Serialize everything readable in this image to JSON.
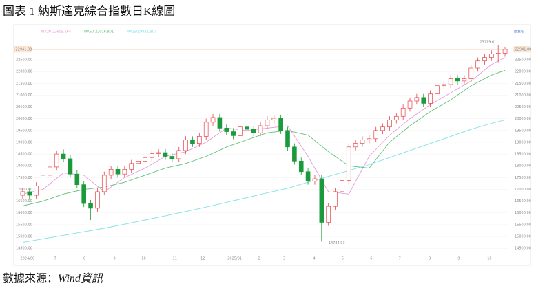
{
  "chart_data": {
    "type": "candlestick",
    "title": "圖表 1 納斯達克綜合指數日K線圖",
    "source_prefix": "數據來源：",
    "source_name": "Wind資訊",
    "adjust_label": "前复权",
    "up_color": "#e8424a",
    "down_color": "#1a9a3a",
    "grid": true,
    "xlim": [
      -0.5,
      71.5
    ],
    "ylim": [
      14300,
      23230
    ],
    "xticks": [
      {
        "value": 0.7,
        "label": "2024/06"
      },
      {
        "value": 4.8,
        "label": "7"
      },
      {
        "value": 9.1,
        "label": "8"
      },
      {
        "value": 13.5,
        "label": "9"
      },
      {
        "value": 17.8,
        "label": "10"
      },
      {
        "value": 22.4,
        "label": "11"
      },
      {
        "value": 26.5,
        "label": "12"
      },
      {
        "value": 31.2,
        "label": "2025/01"
      },
      {
        "value": 34.8,
        "label": "2"
      },
      {
        "value": 38.5,
        "label": "3"
      },
      {
        "value": 42.9,
        "label": "4"
      },
      {
        "value": 47.1,
        "label": "5"
      },
      {
        "value": 51.3,
        "label": "6"
      },
      {
        "value": 55.5,
        "label": "7"
      },
      {
        "value": 59.9,
        "label": "8"
      },
      {
        "value": 64.2,
        "label": "9"
      },
      {
        "value": 68.7,
        "label": "10"
      }
    ],
    "yticks": [
      {
        "value": 14500,
        "label": "14500.00"
      },
      {
        "value": 15000,
        "label": "15000.00"
      },
      {
        "value": 15500,
        "label": "15500.00"
      },
      {
        "value": 16000,
        "label": "16000.00"
      },
      {
        "value": 16500,
        "label": "16500.00"
      },
      {
        "value": 17000,
        "label": "17000.00"
      },
      {
        "value": 17500,
        "label": "17500.00"
      },
      {
        "value": 18000,
        "label": "18000.00"
      },
      {
        "value": 18500,
        "label": "18500.00"
      },
      {
        "value": 19000,
        "label": "19000.00"
      },
      {
        "value": 19500,
        "label": "19500.00"
      },
      {
        "value": 20000,
        "label": "20000.00"
      },
      {
        "value": 20500,
        "label": "20500.00"
      },
      {
        "value": 21000,
        "label": "21000.00"
      },
      {
        "value": 21500,
        "label": "21500.00"
      },
      {
        "value": 22000,
        "label": "22000.00"
      },
      {
        "value": 22500,
        "label": "22500.00"
      }
    ],
    "last_price": {
      "value": 22941,
      "label": "22941.00",
      "color": "#f5a05a"
    },
    "high_index": 70,
    "low_index": 44,
    "candles": {
      "open": [
        16750,
        16900,
        16750,
        17150,
        17600,
        17950,
        18500,
        18300,
        17650,
        17200,
        16400,
        16200,
        16900,
        17600,
        17850,
        17650,
        17850,
        18100,
        18200,
        18350,
        18520,
        18560,
        18400,
        18300,
        18650,
        19100,
        18950,
        19250,
        19850,
        20050,
        19600,
        19450,
        19280,
        19650,
        19550,
        19400,
        19700,
        19950,
        20020,
        19500,
        18800,
        18200,
        17750,
        17350,
        17450,
        15600,
        16280,
        16900,
        17380,
        18800,
        18950,
        19100,
        19150,
        19500,
        19650,
        19950,
        20100,
        20450,
        20750,
        20900,
        20650,
        21050,
        21400,
        21450,
        21700,
        21600,
        21700,
        22150,
        22450,
        22600,
        22750,
        22780
      ],
      "high": [
        17050,
        17050,
        17300,
        17750,
        18100,
        18650,
        18700,
        18450,
        17800,
        17350,
        16550,
        17050,
        17750,
        18000,
        18000,
        18000,
        18250,
        18350,
        18500,
        18670,
        18710,
        18710,
        18550,
        18800,
        19250,
        19250,
        19400,
        20000,
        20200,
        20200,
        19750,
        19600,
        19800,
        19800,
        19700,
        19850,
        20100,
        20170,
        20170,
        19650,
        18950,
        18350,
        17900,
        17600,
        17600,
        16430,
        17050,
        17530,
        18950,
        19100,
        19250,
        19300,
        19650,
        19800,
        20100,
        20250,
        20600,
        20900,
        21050,
        21050,
        21200,
        21550,
        21600,
        21850,
        21850,
        21850,
        22300,
        22600,
        22750,
        22900,
        23119.61,
        23050
      ],
      "low": [
        16600,
        16600,
        16600,
        17000,
        17450,
        17800,
        18150,
        17500,
        17050,
        16250,
        15700,
        16050,
        16750,
        17450,
        17500,
        17500,
        17700,
        17950,
        18050,
        18200,
        18370,
        18250,
        18150,
        18150,
        18500,
        18800,
        18800,
        19100,
        19700,
        19450,
        19300,
        19130,
        19130,
        19400,
        19250,
        19250,
        19550,
        19800,
        19350,
        18650,
        18050,
        17600,
        17200,
        17200,
        14784.03,
        15450,
        16130,
        16750,
        17230,
        18650,
        18800,
        18950,
        19000,
        19350,
        19500,
        19800,
        19950,
        20300,
        20600,
        20500,
        20500,
        20900,
        21250,
        21300,
        21450,
        21450,
        21550,
        22000,
        22300,
        22450,
        22400,
        22630
      ],
      "close": [
        16900,
        16750,
        17150,
        17600,
        17950,
        18500,
        18300,
        17650,
        17200,
        16400,
        16200,
        16900,
        17600,
        17850,
        17650,
        17850,
        18100,
        18200,
        18350,
        18520,
        18560,
        18400,
        18300,
        18650,
        19100,
        18950,
        19250,
        19850,
        20050,
        19600,
        19450,
        19280,
        19650,
        19550,
        19400,
        19700,
        19950,
        20020,
        19500,
        18800,
        18200,
        17750,
        17350,
        17450,
        15600,
        16280,
        16900,
        17380,
        18800,
        18950,
        19100,
        19150,
        19500,
        19650,
        19950,
        20100,
        20450,
        20750,
        20900,
        20650,
        21050,
        21400,
        21450,
        21700,
        21600,
        21700,
        22150,
        22450,
        22600,
        22750,
        22780,
        22941
      ]
    },
    "ma_x": [
      0,
      3,
      6,
      9,
      12,
      15,
      18,
      21,
      24,
      27,
      30,
      33,
      36,
      39,
      42,
      45,
      48,
      51,
      54,
      57,
      60,
      63,
      66,
      69,
      71
    ],
    "series": [
      {
        "name": "MA20",
        "latest": "22605.164",
        "color": "#e79ad6",
        "values": [
          16800,
          17000,
          17700,
          17600,
          16900,
          17500,
          17900,
          18400,
          18600,
          19000,
          19600,
          19500,
          19600,
          19700,
          18400,
          16900,
          16800,
          18400,
          19300,
          20000,
          20600,
          21100,
          21600,
          22300,
          22600
        ]
      },
      {
        "name": "MA60",
        "latest": "22016.801",
        "color": "#5fc07a",
        "values": [
          16300,
          16500,
          16800,
          17000,
          17100,
          17300,
          17600,
          17900,
          18100,
          18400,
          18800,
          19100,
          19400,
          19500,
          19300,
          18600,
          18000,
          17900,
          19000,
          19700,
          20300,
          20800,
          21400,
          21850,
          22050
        ]
      },
      {
        "name": "MA250",
        "latest": "19911.907",
        "color": "#7fe0e8",
        "values": [
          14750,
          14900,
          15050,
          15200,
          15350,
          15520,
          15700,
          15880,
          16060,
          16250,
          16450,
          16650,
          16850,
          17050,
          17300,
          17550,
          17800,
          18050,
          18350,
          18650,
          18950,
          19250,
          19550,
          19800,
          19950
        ]
      }
    ]
  }
}
